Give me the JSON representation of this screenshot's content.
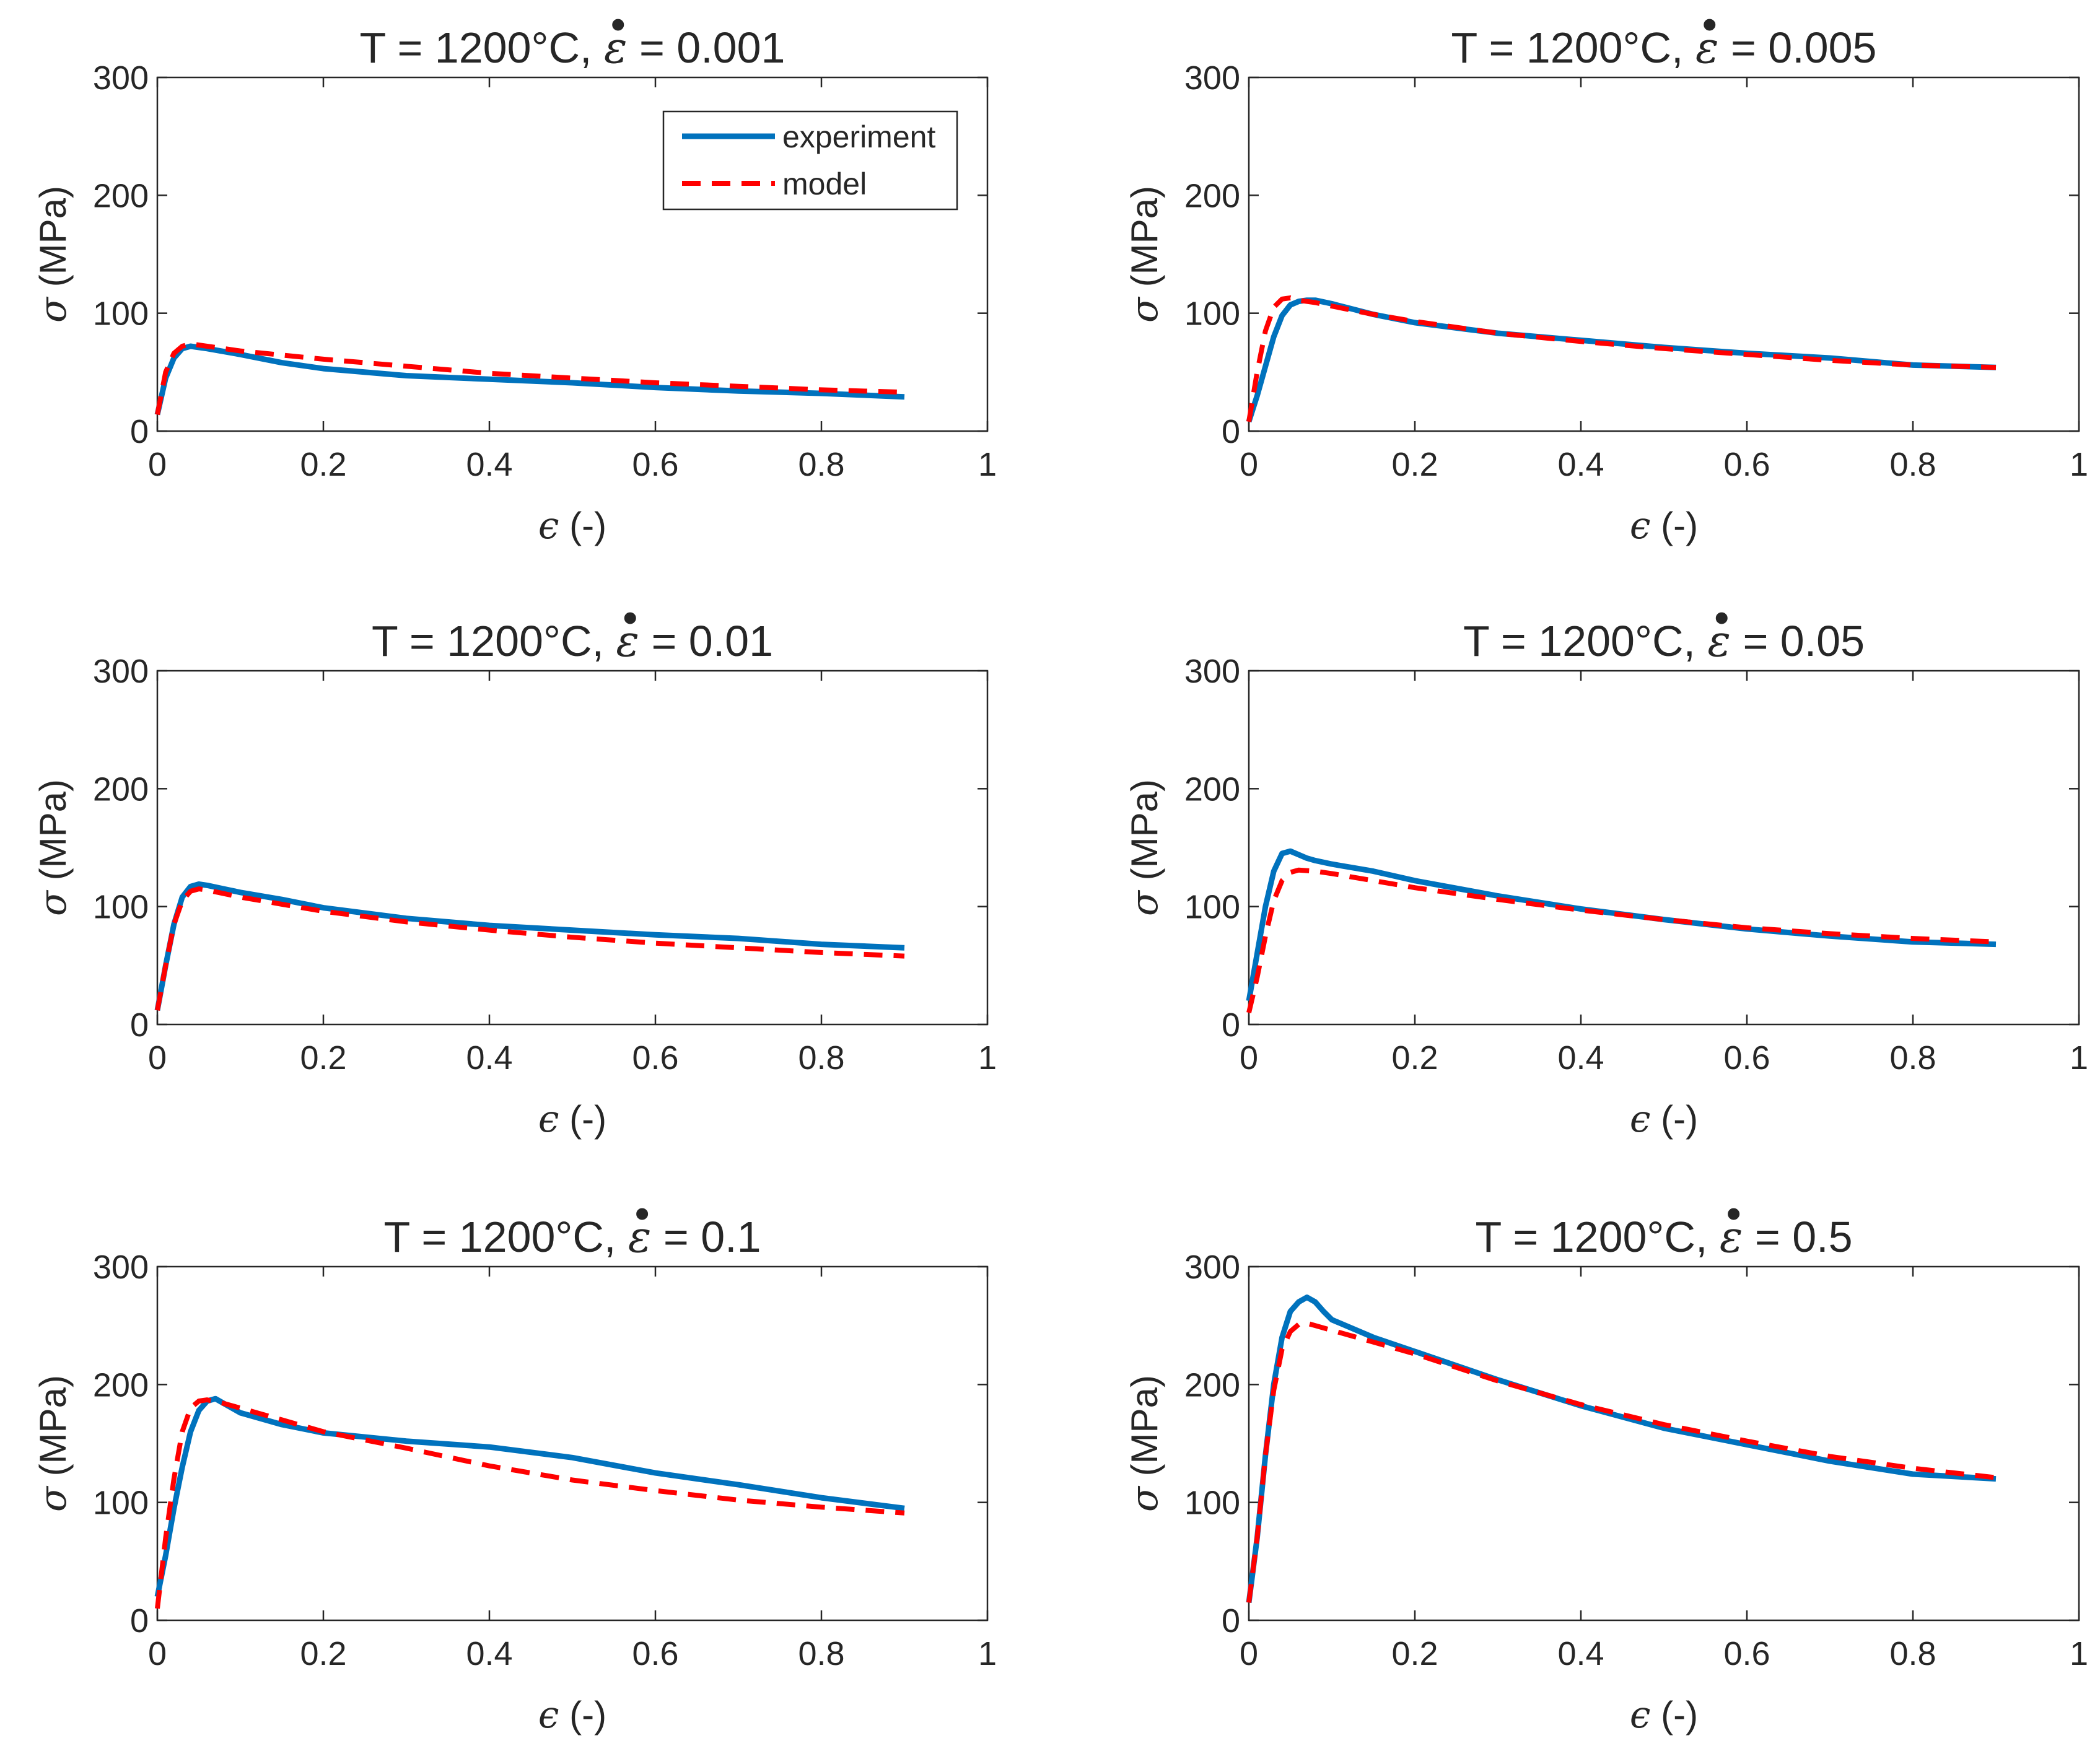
{
  "figure": {
    "title_prefix": "T = 1200°C,",
    "rate_symbol": "ε",
    "rate_dot": "•",
    "equals": "=",
    "xlabel_symbol": "ϵ",
    "xlabel_unit": "(-)",
    "ylabel_symbol": "σ",
    "ylabel_unit": "(MPa)"
  },
  "legend": {
    "experiment": "experiment",
    "model": "model"
  },
  "colors": {
    "experiment": "#0072BD",
    "model": "#FF0000",
    "axes": "#262626"
  },
  "chart_data": [
    {
      "type": "line",
      "title": "T = 1200°C, ε̇ = 0.001",
      "strain_rate": "0.001",
      "xlabel": "ϵ (-)",
      "ylabel": "σ (MPa)",
      "xlim": [
        0,
        1
      ],
      "ylim": [
        0,
        300
      ],
      "xticks": [
        "0",
        "0.2",
        "0.4",
        "0.6",
        "0.8",
        "1"
      ],
      "yticks": [
        "0",
        "100",
        "200",
        "300"
      ],
      "legend": "top-right",
      "series": [
        {
          "name": "experiment",
          "x": [
            0,
            0.01,
            0.02,
            0.03,
            0.04,
            0.06,
            0.1,
            0.15,
            0.2,
            0.3,
            0.4,
            0.5,
            0.6,
            0.7,
            0.8,
            0.9
          ],
          "y": [
            14,
            45,
            62,
            70,
            72,
            70,
            65,
            58,
            53,
            47,
            44,
            41,
            37,
            34,
            32,
            29
          ]
        },
        {
          "name": "model",
          "x": [
            0,
            0.01,
            0.02,
            0.03,
            0.04,
            0.06,
            0.1,
            0.2,
            0.3,
            0.4,
            0.5,
            0.6,
            0.7,
            0.8,
            0.9
          ],
          "y": [
            14,
            50,
            66,
            72,
            74,
            72,
            68,
            61,
            55,
            49,
            45,
            41,
            38,
            35,
            33
          ]
        }
      ]
    },
    {
      "type": "line",
      "title": "T = 1200°C, ε̇ = 0.005",
      "strain_rate": "0.005",
      "xlabel": "ϵ (-)",
      "ylabel": "σ (MPa)",
      "xlim": [
        0,
        1
      ],
      "ylim": [
        0,
        300
      ],
      "xticks": [
        "0",
        "0.2",
        "0.4",
        "0.6",
        "0.8",
        "1"
      ],
      "yticks": [
        "0",
        "100",
        "200",
        "300"
      ],
      "series": [
        {
          "name": "experiment",
          "x": [
            0,
            0.01,
            0.02,
            0.03,
            0.04,
            0.05,
            0.06,
            0.07,
            0.08,
            0.1,
            0.15,
            0.2,
            0.3,
            0.4,
            0.5,
            0.6,
            0.7,
            0.8,
            0.9
          ],
          "y": [
            8,
            30,
            55,
            80,
            98,
            107,
            110,
            111,
            111,
            108,
            99,
            92,
            83,
            77,
            71,
            66,
            62,
            56,
            54
          ]
        },
        {
          "name": "model",
          "x": [
            0,
            0.01,
            0.02,
            0.03,
            0.04,
            0.05,
            0.06,
            0.08,
            0.1,
            0.15,
            0.2,
            0.3,
            0.4,
            0.5,
            0.6,
            0.7,
            0.8,
            0.9
          ],
          "y": [
            8,
            50,
            85,
            105,
            112,
            113,
            111,
            109,
            106,
            99,
            93,
            83,
            76,
            70,
            65,
            60,
            56,
            54
          ]
        }
      ]
    },
    {
      "type": "line",
      "title": "T = 1200°C, ε̇ = 0.01",
      "strain_rate": "0.01",
      "xlabel": "ϵ (-)",
      "ylabel": "σ (MPa)",
      "xlim": [
        0,
        1
      ],
      "ylim": [
        0,
        300
      ],
      "xticks": [
        "0",
        "0.2",
        "0.4",
        "0.6",
        "0.8",
        "1"
      ],
      "yticks": [
        "0",
        "100",
        "200",
        "300"
      ],
      "series": [
        {
          "name": "experiment",
          "x": [
            0,
            0.01,
            0.02,
            0.03,
            0.04,
            0.05,
            0.06,
            0.08,
            0.1,
            0.15,
            0.2,
            0.3,
            0.4,
            0.5,
            0.6,
            0.7,
            0.8,
            0.9
          ],
          "y": [
            12,
            50,
            85,
            108,
            117,
            119,
            118,
            115,
            112,
            106,
            99,
            90,
            84,
            80,
            76,
            73,
            68,
            65
          ]
        },
        {
          "name": "model",
          "x": [
            0,
            0.01,
            0.02,
            0.03,
            0.04,
            0.05,
            0.06,
            0.08,
            0.1,
            0.15,
            0.2,
            0.3,
            0.4,
            0.5,
            0.6,
            0.7,
            0.8,
            0.9
          ],
          "y": [
            12,
            50,
            85,
            105,
            113,
            115,
            114,
            111,
            108,
            102,
            96,
            87,
            80,
            74,
            69,
            65,
            61,
            58
          ]
        }
      ]
    },
    {
      "type": "line",
      "title": "T = 1200°C, ε̇ = 0.05",
      "strain_rate": "0.05",
      "xlabel": "ϵ (-)",
      "ylabel": "σ (MPa)",
      "xlim": [
        0,
        1
      ],
      "ylim": [
        0,
        300
      ],
      "xticks": [
        "0",
        "0.2",
        "0.4",
        "0.6",
        "0.8",
        "1"
      ],
      "yticks": [
        "0",
        "100",
        "200",
        "300"
      ],
      "series": [
        {
          "name": "experiment",
          "x": [
            0,
            0.01,
            0.02,
            0.03,
            0.04,
            0.05,
            0.06,
            0.07,
            0.08,
            0.1,
            0.15,
            0.2,
            0.3,
            0.4,
            0.5,
            0.6,
            0.7,
            0.8,
            0.9
          ],
          "y": [
            20,
            60,
            100,
            130,
            145,
            147,
            144,
            141,
            139,
            136,
            130,
            122,
            109,
            98,
            89,
            81,
            75,
            70,
            68
          ]
        },
        {
          "name": "model",
          "x": [
            0,
            0.01,
            0.02,
            0.03,
            0.04,
            0.05,
            0.06,
            0.08,
            0.1,
            0.15,
            0.2,
            0.3,
            0.4,
            0.5,
            0.6,
            0.7,
            0.8,
            0.9
          ],
          "y": [
            10,
            40,
            75,
            105,
            122,
            129,
            131,
            130,
            128,
            122,
            116,
            106,
            97,
            89,
            82,
            77,
            73,
            70
          ]
        }
      ]
    },
    {
      "type": "line",
      "title": "T = 1200°C, ε̇ = 0.1",
      "strain_rate": "0.1",
      "xlabel": "ϵ (-)",
      "ylabel": "σ (MPa)",
      "xlim": [
        0,
        1
      ],
      "ylim": [
        0,
        300
      ],
      "xticks": [
        "0",
        "0.2",
        "0.4",
        "0.6",
        "0.8",
        "1"
      ],
      "yticks": [
        "0",
        "100",
        "200",
        "300"
      ],
      "series": [
        {
          "name": "experiment",
          "x": [
            0,
            0.01,
            0.02,
            0.03,
            0.04,
            0.05,
            0.06,
            0.07,
            0.08,
            0.1,
            0.15,
            0.2,
            0.3,
            0.4,
            0.5,
            0.6,
            0.7,
            0.8,
            0.9
          ],
          "y": [
            20,
            55,
            95,
            130,
            160,
            178,
            186,
            188,
            184,
            176,
            166,
            159,
            152,
            147,
            138,
            125,
            115,
            104,
            95
          ]
        },
        {
          "name": "model",
          "x": [
            0,
            0.01,
            0.02,
            0.03,
            0.04,
            0.05,
            0.06,
            0.08,
            0.1,
            0.15,
            0.2,
            0.3,
            0.4,
            0.5,
            0.6,
            0.7,
            0.8,
            0.9
          ],
          "y": [
            10,
            70,
            120,
            160,
            180,
            186,
            187,
            184,
            180,
            170,
            160,
            146,
            131,
            119,
            110,
            102,
            96,
            91
          ]
        }
      ]
    },
    {
      "type": "line",
      "title": "T = 1200°C, ε̇ = 0.5",
      "strain_rate": "0.5",
      "xlabel": "ϵ (-)",
      "ylabel": "σ (MPa)",
      "xlim": [
        0,
        1
      ],
      "ylim": [
        0,
        300
      ],
      "xticks": [
        "0",
        "0.2",
        "0.4",
        "0.6",
        "0.8",
        "1"
      ],
      "yticks": [
        "0",
        "100",
        "200",
        "300"
      ],
      "series": [
        {
          "name": "experiment",
          "x": [
            0,
            0.01,
            0.02,
            0.03,
            0.04,
            0.05,
            0.06,
            0.07,
            0.08,
            0.09,
            0.1,
            0.15,
            0.2,
            0.3,
            0.4,
            0.5,
            0.6,
            0.7,
            0.8,
            0.9
          ],
          "y": [
            15,
            70,
            140,
            200,
            240,
            262,
            270,
            274,
            270,
            262,
            255,
            240,
            228,
            204,
            182,
            163,
            149,
            135,
            124,
            120
          ]
        },
        {
          "name": "model",
          "x": [
            0,
            0.01,
            0.02,
            0.03,
            0.04,
            0.05,
            0.06,
            0.07,
            0.08,
            0.1,
            0.15,
            0.2,
            0.3,
            0.4,
            0.5,
            0.6,
            0.7,
            0.8,
            0.9
          ],
          "y": [
            15,
            70,
            140,
            195,
            230,
            245,
            251,
            252,
            250,
            246,
            236,
            226,
            203,
            183,
            166,
            152,
            139,
            129,
            121
          ]
        }
      ]
    }
  ]
}
